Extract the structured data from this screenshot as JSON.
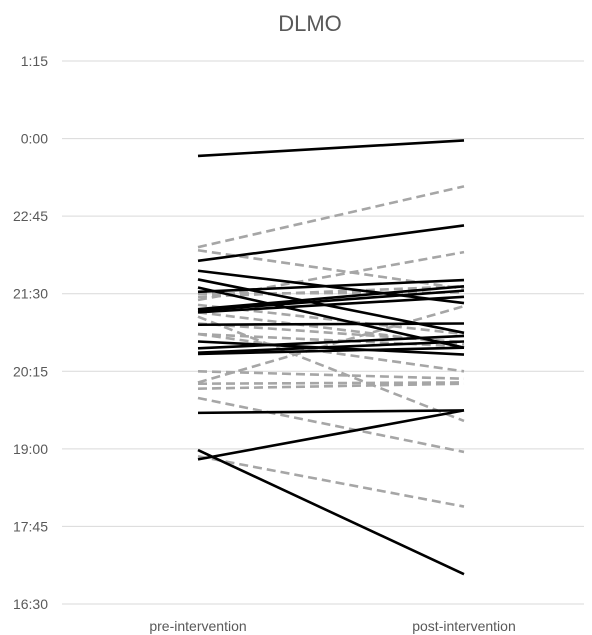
{
  "chart_data": {
    "type": "line",
    "title": "DLMO",
    "xlabel": "",
    "ylabel": "",
    "categories": [
      "pre-intervention",
      "post-intervention"
    ],
    "y_ticks": [
      "1:15",
      "0:00",
      "22:45",
      "21:30",
      "20:15",
      "19:00",
      "17:45",
      "16:30"
    ],
    "ylim_hours": [
      16.5,
      25.25
    ],
    "grid": true,
    "legend": "none",
    "colors": {
      "solid": "#000000",
      "dashed": "#a6a6a6",
      "grid": "#d9d9d9",
      "text": "#595959"
    },
    "series": [
      {
        "style": "solid",
        "values": [
          23.72,
          23.97
        ]
      },
      {
        "style": "solid",
        "values": [
          22.03,
          22.6
        ]
      },
      {
        "style": "solid",
        "values": [
          21.0,
          21.02
        ]
      },
      {
        "style": "solid",
        "values": [
          21.87,
          21.35
        ]
      },
      {
        "style": "solid",
        "values": [
          21.73,
          20.87
        ]
      },
      {
        "style": "solid",
        "values": [
          21.6,
          20.63
        ]
      },
      {
        "style": "solid",
        "values": [
          21.53,
          21.72
        ]
      },
      {
        "style": "solid",
        "values": [
          21.25,
          21.62
        ]
      },
      {
        "style": "solid",
        "values": [
          21.23,
          21.55
        ]
      },
      {
        "style": "solid",
        "values": [
          21.2,
          21.45
        ]
      },
      {
        "style": "solid",
        "values": [
          20.73,
          20.52
        ]
      },
      {
        "style": "solid",
        "values": [
          20.62,
          20.82
        ]
      },
      {
        "style": "solid",
        "values": [
          20.55,
          20.73
        ]
      },
      {
        "style": "solid",
        "values": [
          20.53,
          20.63
        ]
      },
      {
        "style": "solid",
        "values": [
          19.58,
          19.62
        ]
      },
      {
        "style": "solid",
        "values": [
          18.83,
          19.62
        ]
      },
      {
        "style": "solid",
        "values": [
          18.98,
          16.98
        ]
      },
      {
        "style": "dashed",
        "values": [
          22.25,
          23.23
        ]
      },
      {
        "style": "dashed",
        "values": [
          22.2,
          21.58
        ]
      },
      {
        "style": "dashed",
        "values": [
          21.4,
          22.17
        ]
      },
      {
        "style": "dashed",
        "values": [
          21.5,
          21.52
        ]
      },
      {
        "style": "dashed",
        "values": [
          21.45,
          21.62
        ]
      },
      {
        "style": "dashed",
        "values": [
          21.32,
          20.85
        ]
      },
      {
        "style": "dashed",
        "values": [
          21.2,
          20.68
        ]
      },
      {
        "style": "dashed",
        "values": [
          21.02,
          20.72
        ]
      },
      {
        "style": "dashed",
        "values": [
          20.85,
          20.25
        ]
      },
      {
        "style": "dashed",
        "values": [
          20.25,
          20.13
        ]
      },
      {
        "style": "dashed",
        "values": [
          20.07,
          21.3
        ]
      },
      {
        "style": "dashed",
        "values": [
          20.05,
          20.07
        ]
      },
      {
        "style": "dashed",
        "values": [
          19.97,
          20.05
        ]
      },
      {
        "style": "dashed",
        "values": [
          19.82,
          18.95
        ]
      },
      {
        "style": "dashed",
        "values": [
          18.88,
          18.07
        ]
      },
      {
        "style": "dashed",
        "values": [
          21.13,
          19.45
        ]
      },
      {
        "style": "dashed",
        "values": [
          20.85,
          20.65
        ]
      }
    ]
  }
}
